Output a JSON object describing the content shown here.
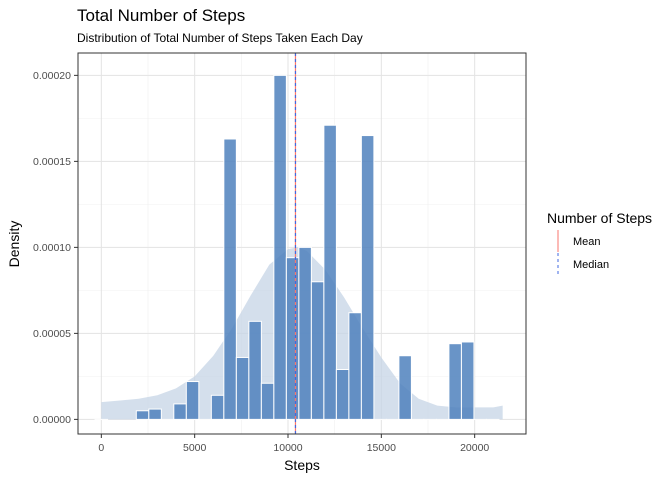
{
  "chart_data": {
    "type": "bar",
    "title": "Total Number of Steps",
    "subtitle": "Distribution of Total Number of Steps Taken Each Day",
    "xlabel": "Steps",
    "ylabel": "Density",
    "xlim": [
      -1250,
      22750
    ],
    "ylim": [
      -8.5e-06,
      0.000213
    ],
    "x_ticks": [
      0,
      5000,
      10000,
      15000,
      20000
    ],
    "x_tick_labels": [
      "0",
      "5000",
      "10000",
      "15000",
      "20000"
    ],
    "y_ticks": [
      0,
      5e-05,
      0.0001,
      0.00015,
      0.0002
    ],
    "y_tick_labels": [
      "0.00000",
      "0.00005",
      "0.00010",
      "0.00015",
      "0.00020"
    ],
    "grid": true,
    "bin_width": 670,
    "histogram": {
      "x": [
        0,
        2209,
        2879,
        3549,
        4218,
        4888,
        5558,
        6228,
        6898,
        7568,
        8238,
        8908,
        9577,
        10247,
        10917,
        11587,
        12257,
        12927,
        13597,
        14266,
        14936,
        15606,
        16276,
        16946,
        17616,
        18286,
        18956,
        19626,
        20295,
        20965
      ],
      "density": [
        0,
        5e-06,
        6e-06,
        0,
        9e-06,
        2.2e-05,
        0,
        1.4e-05,
        0.000163,
        3.6e-05,
        5.7e-05,
        2.1e-05,
        0.0002,
        9.4e-05,
        0.0001,
        8e-05,
        0.000171,
        2.9e-05,
        6.2e-05,
        0.000165,
        0,
        0,
        3.7e-05,
        0,
        0,
        0,
        4.4e-05,
        4.5e-05,
        0,
        0
      ],
      "color": "#4f81bd"
    },
    "density_curve": {
      "x": [
        0,
        1000,
        2000,
        3000,
        4000,
        5000,
        6000,
        7000,
        8000,
        9000,
        10000,
        10500,
        11000,
        12000,
        13000,
        14000,
        15000,
        16000,
        17000,
        18000,
        19000,
        20000,
        21000,
        21500
      ],
      "y": [
        1e-05,
        1.1e-05,
        1.2e-05,
        1.4e-05,
        1.8e-05,
        2.5e-05,
        3.7e-05,
        5.3e-05,
        7.2e-05,
        9e-05,
        9.9e-05,
        0.0001,
        9.8e-05,
        8.7e-05,
        7.1e-05,
        5.3e-05,
        3.6e-05,
        2.1e-05,
        1.2e-05,
        8e-06,
        7e-06,
        7e-06,
        7e-06,
        8e-06
      ],
      "color": "#c6d4e6"
    },
    "reference_lines": [
      {
        "name": "Mean",
        "x": 10400,
        "color": "#f8766d",
        "dash": "solid"
      },
      {
        "name": "Median",
        "x": 10400,
        "color": "#4169e1",
        "dash": "dashed"
      }
    ],
    "legend": {
      "title": "Number of Steps",
      "position": "right",
      "entries": [
        "Mean",
        "Median"
      ]
    }
  }
}
